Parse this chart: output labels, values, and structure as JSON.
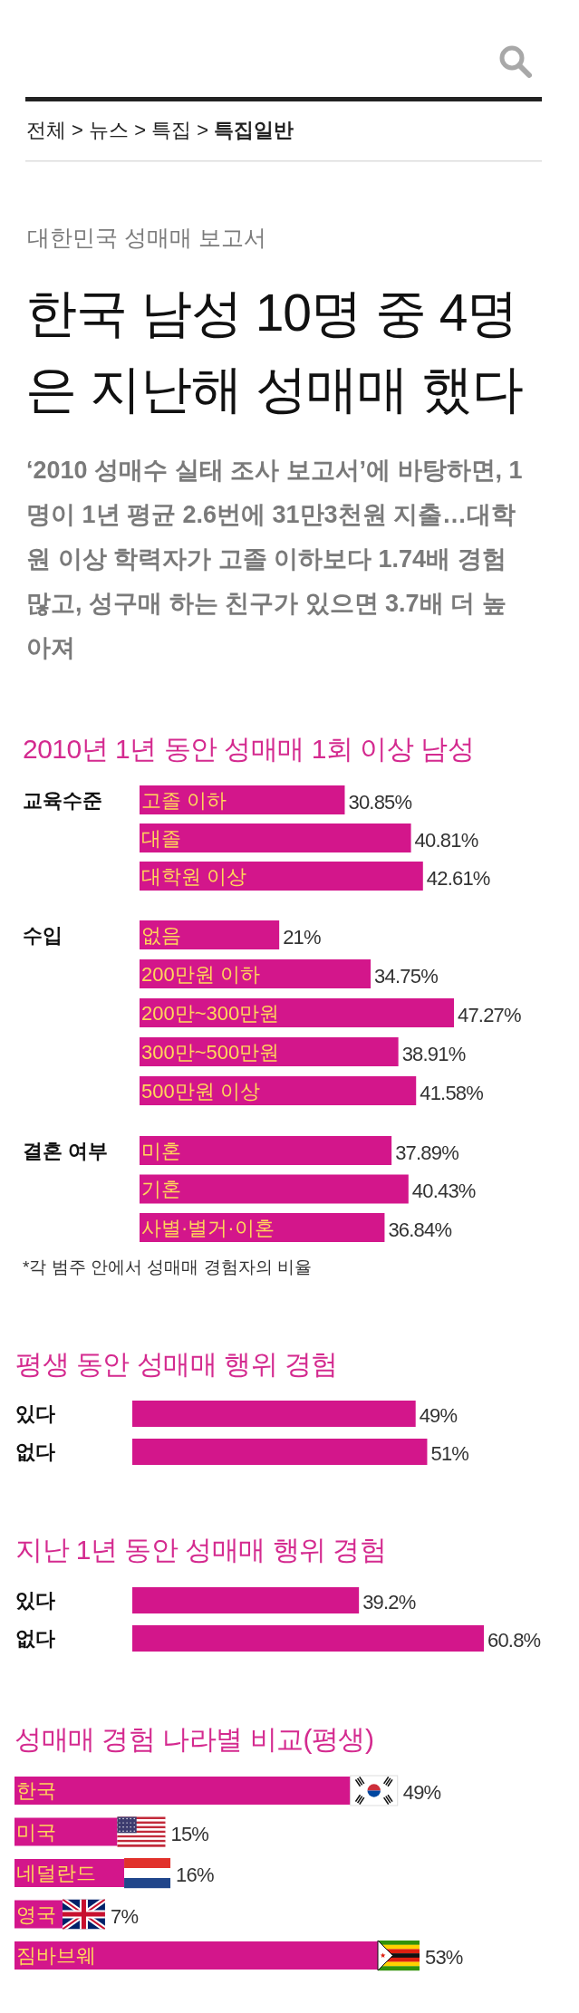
{
  "chart_data": [
    {
      "type": "other",
      "title": "한국 남성 10명 중 4명은 지난해 성매매 했다",
      "subtitle": "‘2010 성매수 실태 조사 보고서’에 바탕하면, 1명이 1년 평균 2.6번에 31만3천원 지출…대학원 이상 학력자가 고졸 이하보다 1.74배 경험 많고, 성구매 하는 친구가 있으면 3.7배 더 높아져",
      "annotations": [
        "전체 > 뉴스 > 특집 > 특집일반",
        "대한민국 성매매 보고서"
      ]
    },
    {
      "type": "bar",
      "orientation": "horizontal",
      "title": "2010년 1년 동안 성매매 1회 이상 남성",
      "ylabel": "교육수준",
      "categories": [
        "고졸 이하",
        "대졸",
        "대학원 이상"
      ],
      "values": [
        30.85,
        40.81,
        42.61
      ],
      "value_labels": [
        "30.85%",
        "40.81%",
        "42.61%"
      ],
      "color": "#d3168b"
    },
    {
      "type": "bar",
      "orientation": "horizontal",
      "ylabel": "수입",
      "categories": [
        "없음",
        "200만원 이하",
        "200만~300만원",
        "300만~500만원",
        "500만원 이상"
      ],
      "values": [
        21,
        34.75,
        47.27,
        38.91,
        41.58
      ],
      "value_labels": [
        "21%",
        "34.75%",
        "47.27%",
        "38.91%",
        "41.58%"
      ],
      "color": "#d3168b"
    },
    {
      "type": "bar",
      "orientation": "horizontal",
      "ylabel": "결혼 여부",
      "categories": [
        "미혼",
        "기혼",
        "사별·별거·이혼"
      ],
      "values": [
        37.89,
        40.43,
        36.84
      ],
      "value_labels": [
        "37.89%",
        "40.43%",
        "36.84%"
      ],
      "color": "#d3168b",
      "annotations": [
        "*각 범주 안에서 성매매 경험자의 비율"
      ]
    },
    {
      "type": "bar",
      "orientation": "horizontal",
      "title": "평생 동안 성매매 행위 경험",
      "categories": [
        "있다",
        "없다"
      ],
      "values": [
        49,
        51
      ],
      "value_labels": [
        "49%",
        "51%"
      ],
      "color": "#d3168b"
    },
    {
      "type": "bar",
      "orientation": "horizontal",
      "title": "지난 1년 동안 성매매 행위 경험",
      "categories": [
        "있다",
        "없다"
      ],
      "values": [
        39.2,
        60.8
      ],
      "value_labels": [
        "39.2%",
        "60.8%"
      ],
      "color": "#d3168b"
    },
    {
      "type": "bar",
      "orientation": "horizontal",
      "title": "성매매 경험 나라별 비교(평생)",
      "categories": [
        "한국",
        "미국",
        "네덜란드",
        "영국",
        "짐바브웨"
      ],
      "values": [
        49,
        15,
        16,
        7,
        53
      ],
      "value_labels": [
        "49%",
        "15%",
        "16%",
        "7%",
        "53%"
      ],
      "color": "#d3168b"
    }
  ]
}
